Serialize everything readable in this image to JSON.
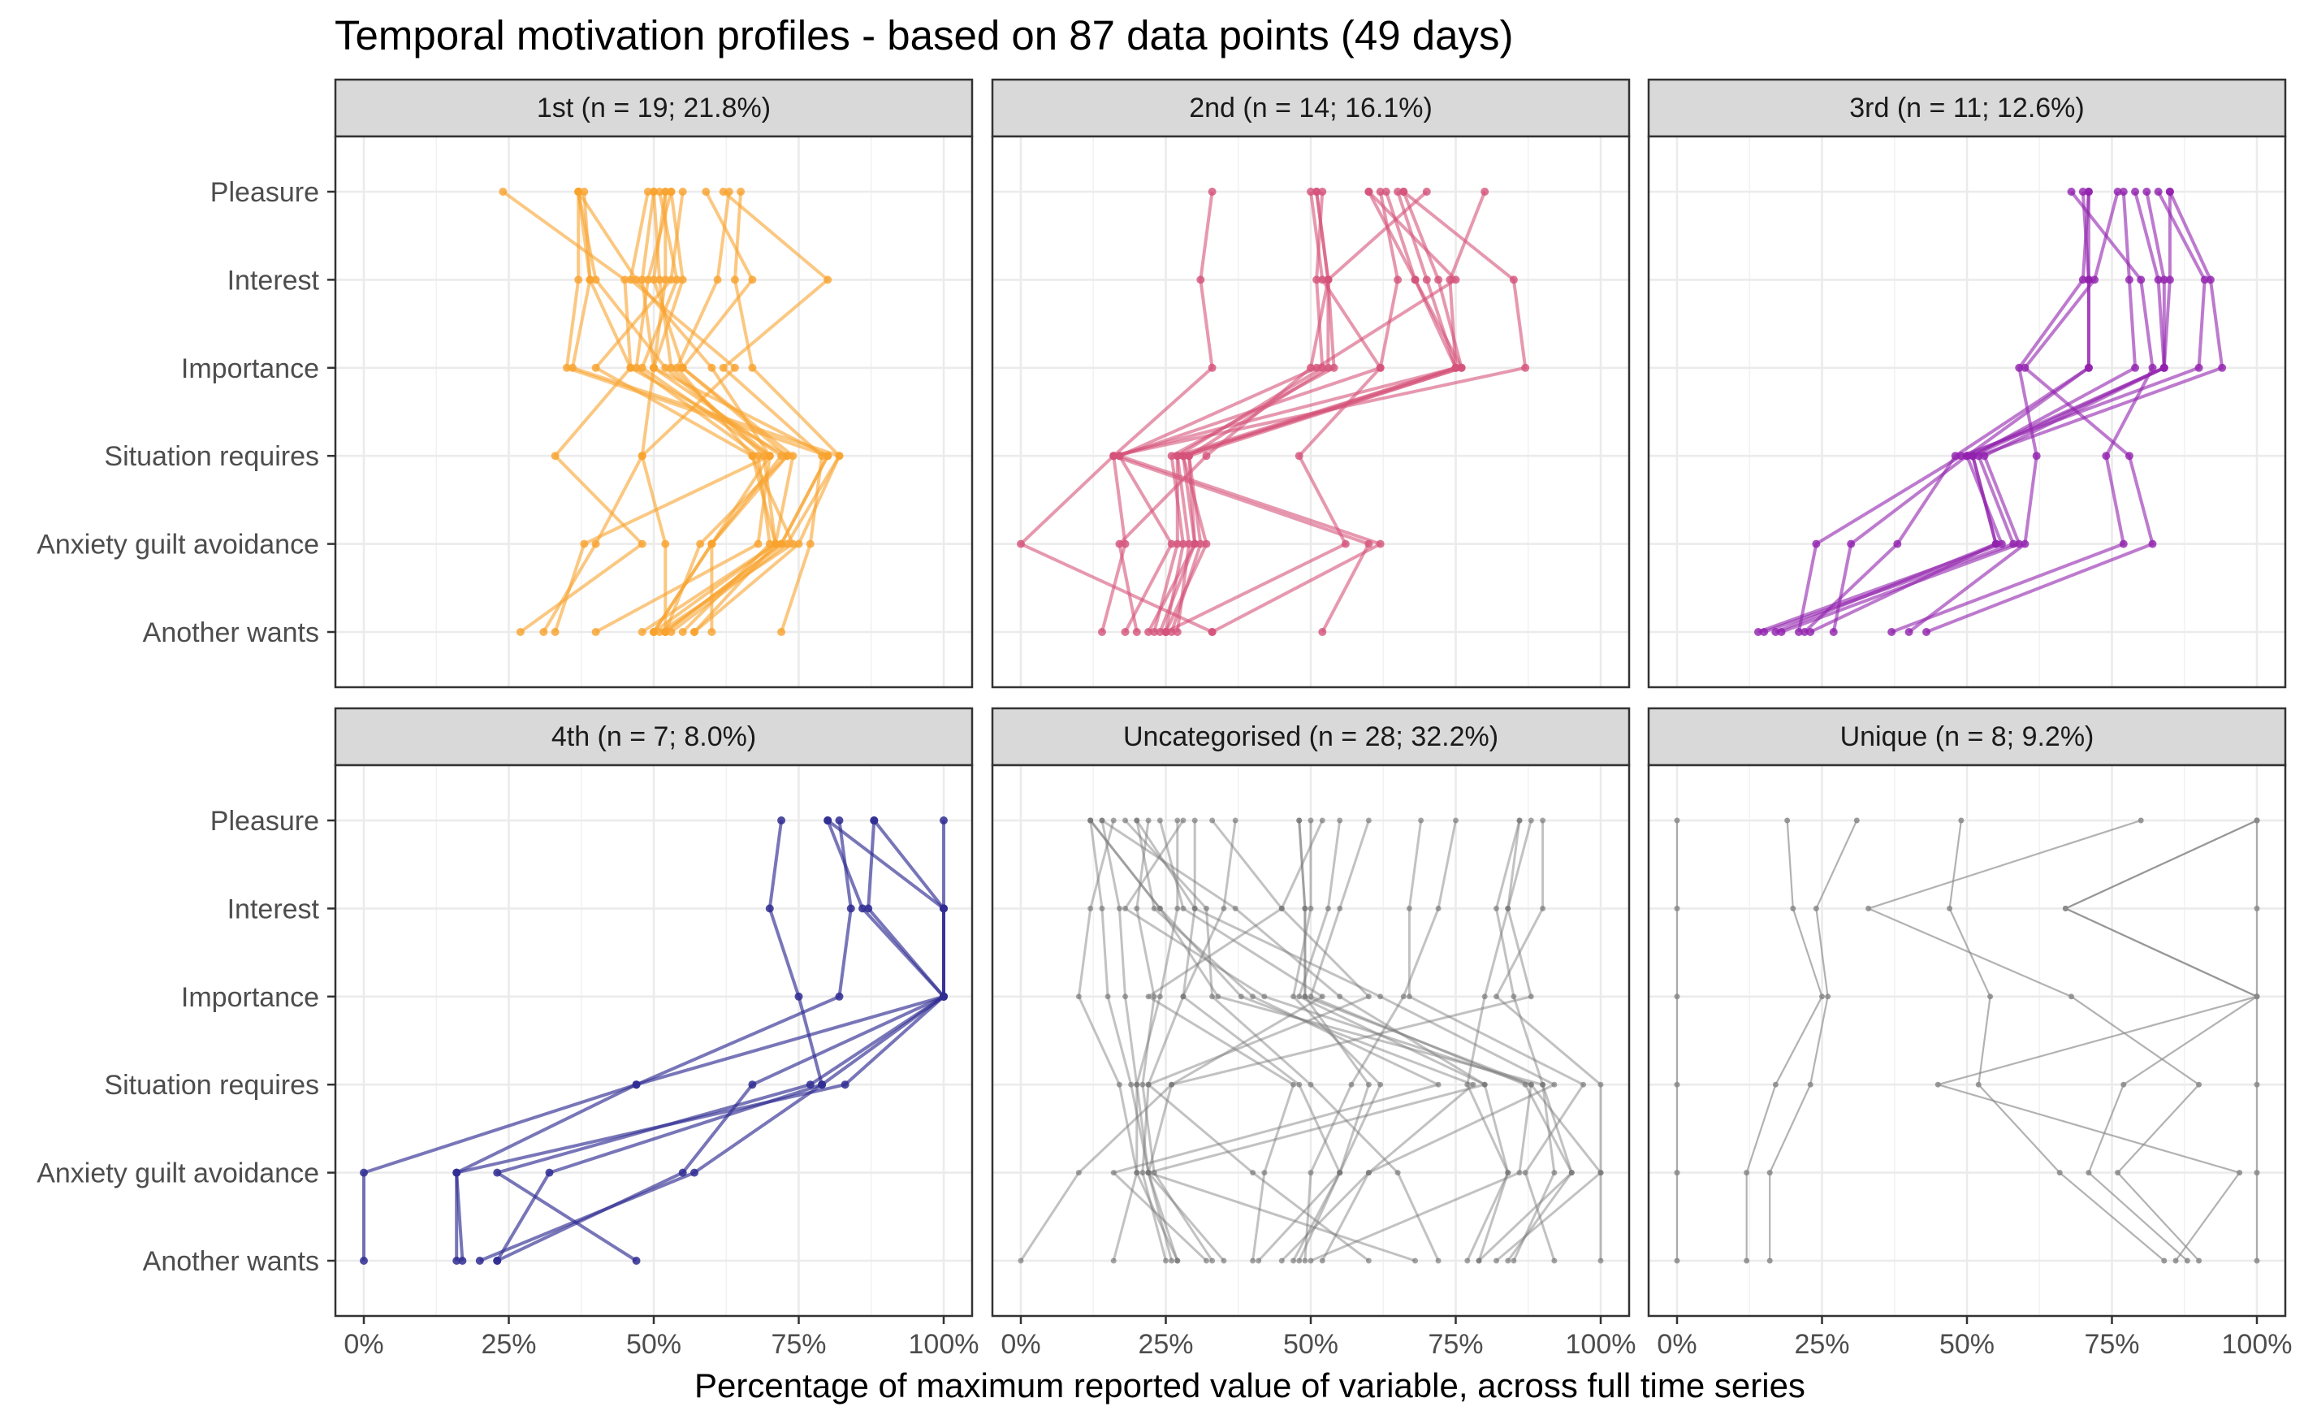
{
  "chart_data": {
    "type": "line",
    "title": "Temporal motivation profiles - based on 87 data points (49 days)",
    "xlabel": "Percentage of maximum reported value of variable, across full time series",
    "ylabel": "",
    "xlim": [
      0,
      100
    ],
    "x_ticks": [
      "0%",
      "25%",
      "50%",
      "75%",
      "100%"
    ],
    "y_categories": [
      "Pleasure",
      "Interest",
      "Importance",
      "Situation requires",
      "Anxiety guilt avoidance",
      "Another wants"
    ],
    "grid": true,
    "legend": "none",
    "panels": [
      {
        "label": "1st (n = 19; 21.8%)",
        "color": "#f9a32e",
        "profiles": [
          [
            37,
            37,
            35,
            80,
            72,
            52
          ],
          [
            38,
            39,
            36,
            82,
            73,
            53
          ],
          [
            51,
            54,
            48,
            70,
            60,
            50
          ],
          [
            52,
            50,
            55,
            73,
            58,
            52
          ],
          [
            52,
            52,
            50,
            72,
            60,
            50
          ],
          [
            53,
            49,
            47,
            68,
            70,
            55
          ],
          [
            50,
            51,
            53,
            69,
            71,
            48
          ],
          [
            53,
            55,
            50,
            48,
            52,
            52
          ],
          [
            63,
            61,
            54,
            67,
            71,
            57
          ],
          [
            65,
            64,
            67,
            82,
            75,
            57
          ],
          [
            37,
            40,
            52,
            70,
            68,
            40
          ],
          [
            49,
            46,
            64,
            48,
            40,
            31
          ],
          [
            37,
            47,
            60,
            70,
            38,
            33
          ],
          [
            50,
            48,
            50,
            80,
            72,
            52
          ],
          [
            24,
            45,
            46,
            33,
            48,
            27
          ],
          [
            55,
            53,
            40,
            67,
            74,
            51
          ],
          [
            59,
            67,
            55,
            74,
            71,
            50
          ],
          [
            62,
            80,
            62,
            79,
            77,
            72
          ],
          [
            37,
            39,
            46,
            73,
            60,
            60
          ]
        ]
      },
      {
        "label": "2nd (n = 14; 16.1%)",
        "color": "#d5537a",
        "profiles": [
          [
            51,
            53,
            53,
            29,
            31,
            26
          ],
          [
            51,
            53,
            54,
            26,
            28,
            25
          ],
          [
            52,
            51,
            52,
            27,
            29,
            27
          ],
          [
            65,
            70,
            75,
            27,
            27,
            23
          ],
          [
            66,
            72,
            76,
            28,
            30,
            24
          ],
          [
            63,
            68,
            76,
            29,
            30,
            22
          ],
          [
            60,
            68,
            75,
            28,
            32,
            25
          ],
          [
            80,
            74,
            75,
            16,
            18,
            14
          ],
          [
            50,
            52,
            62,
            17,
            26,
            18
          ],
          [
            66,
            85,
            87,
            16,
            60,
            52
          ],
          [
            33,
            31,
            33,
            16,
            0,
            33
          ],
          [
            70,
            53,
            50,
            32,
            17,
            20
          ],
          [
            60,
            75,
            51,
            17,
            62,
            33
          ],
          [
            62,
            65,
            62,
            48,
            56,
            25
          ]
        ]
      },
      {
        "label": "3rd (n = 11; 12.6%)",
        "color": "#9121ae",
        "profiles": [
          [
            77,
            78,
            79,
            51,
            55,
            23
          ],
          [
            79,
            83,
            84,
            51,
            55,
            17
          ],
          [
            81,
            84,
            84,
            53,
            59,
            18
          ],
          [
            85,
            85,
            84,
            50,
            56,
            14
          ],
          [
            85,
            92,
            94,
            52,
            58,
            15
          ],
          [
            70,
            71,
            71,
            48,
            38,
            22
          ],
          [
            71,
            71,
            71,
            50,
            30,
            27
          ],
          [
            83,
            91,
            90,
            49,
            24,
            21
          ],
          [
            68,
            80,
            82,
            74,
            77,
            37
          ],
          [
            71,
            70,
            59,
            62,
            60,
            40
          ],
          [
            76,
            72,
            60,
            78,
            82,
            43
          ]
        ]
      },
      {
        "label": "4th (n = 7; 8.0%)",
        "color": "#2f2d92",
        "profiles": [
          [
            80,
            86,
            100,
            83,
            16,
            16
          ],
          [
            82,
            84,
            82,
            47,
            16,
            17
          ],
          [
            88,
            87,
            100,
            79,
            32,
            23
          ],
          [
            88,
            100,
            100,
            67,
            55,
            23
          ],
          [
            72,
            70,
            75,
            79,
            57,
            20
          ],
          [
            100,
            100,
            100,
            47,
            0,
            0
          ],
          [
            80,
            100,
            100,
            77,
            23,
            47
          ]
        ]
      },
      {
        "label": "Uncategorised (n = 28; 32.2%)",
        "color": "#777777",
        "profiles": [
          [
            12,
            14,
            15,
            19,
            22,
            26
          ],
          [
            14,
            17,
            18,
            20,
            22,
            27
          ],
          [
            22,
            20,
            23,
            21,
            23,
            33
          ],
          [
            27,
            27,
            24,
            20,
            20,
            27
          ],
          [
            30,
            30,
            28,
            22,
            21,
            25
          ],
          [
            48,
            49,
            49,
            60,
            55,
            41
          ],
          [
            48,
            49,
            49,
            88,
            86,
            50
          ],
          [
            50,
            50,
            47,
            62,
            55,
            48
          ],
          [
            86,
            84,
            80,
            77,
            84,
            79
          ],
          [
            86,
            82,
            85,
            90,
            92,
            85
          ],
          [
            37,
            35,
            28,
            48,
            55,
            47
          ],
          [
            12,
            24,
            34,
            90,
            95,
            79
          ],
          [
            60,
            55,
            50,
            87,
            95,
            84
          ],
          [
            90,
            90,
            82,
            100,
            100,
            100
          ],
          [
            20,
            30,
            62,
            92,
            60,
            52
          ],
          [
            69,
            67,
            67,
            97,
            87,
            92
          ],
          [
            28,
            18,
            42,
            88,
            100,
            82
          ],
          [
            12,
            24,
            38,
            78,
            60,
            45
          ],
          [
            75,
            72,
            66,
            57,
            50,
            49
          ],
          [
            14,
            37,
            55,
            80,
            84,
            77
          ],
          [
            88,
            84,
            88,
            26,
            22,
            35
          ],
          [
            18,
            32,
            33,
            50,
            65,
            72
          ],
          [
            24,
            28,
            52,
            26,
            10,
            0
          ],
          [
            33,
            45,
            60,
            22,
            40,
            60
          ],
          [
            55,
            53,
            48,
            80,
            22,
            68
          ],
          [
            20,
            23,
            40,
            72,
            16,
            32
          ],
          [
            16,
            12,
            10,
            17,
            20,
            16
          ],
          [
            52,
            45,
            22,
            47,
            42,
            40
          ]
        ]
      },
      {
        "label": "Unique (n = 8; 9.2%)",
        "color": "#888888",
        "profiles": [
          [
            0,
            0,
            0,
            0,
            0,
            0
          ],
          [
            100,
            100,
            100,
            100,
            100,
            100
          ],
          [
            19,
            20,
            25,
            17,
            12,
            12
          ],
          [
            31,
            24,
            26,
            23,
            16,
            16
          ],
          [
            49,
            47,
            54,
            52,
            66,
            84
          ],
          [
            80,
            33,
            68,
            90,
            76,
            90
          ],
          [
            100,
            67,
            100,
            45,
            97,
            86
          ],
          [
            100,
            67,
            100,
            77,
            71,
            88
          ]
        ]
      }
    ]
  }
}
